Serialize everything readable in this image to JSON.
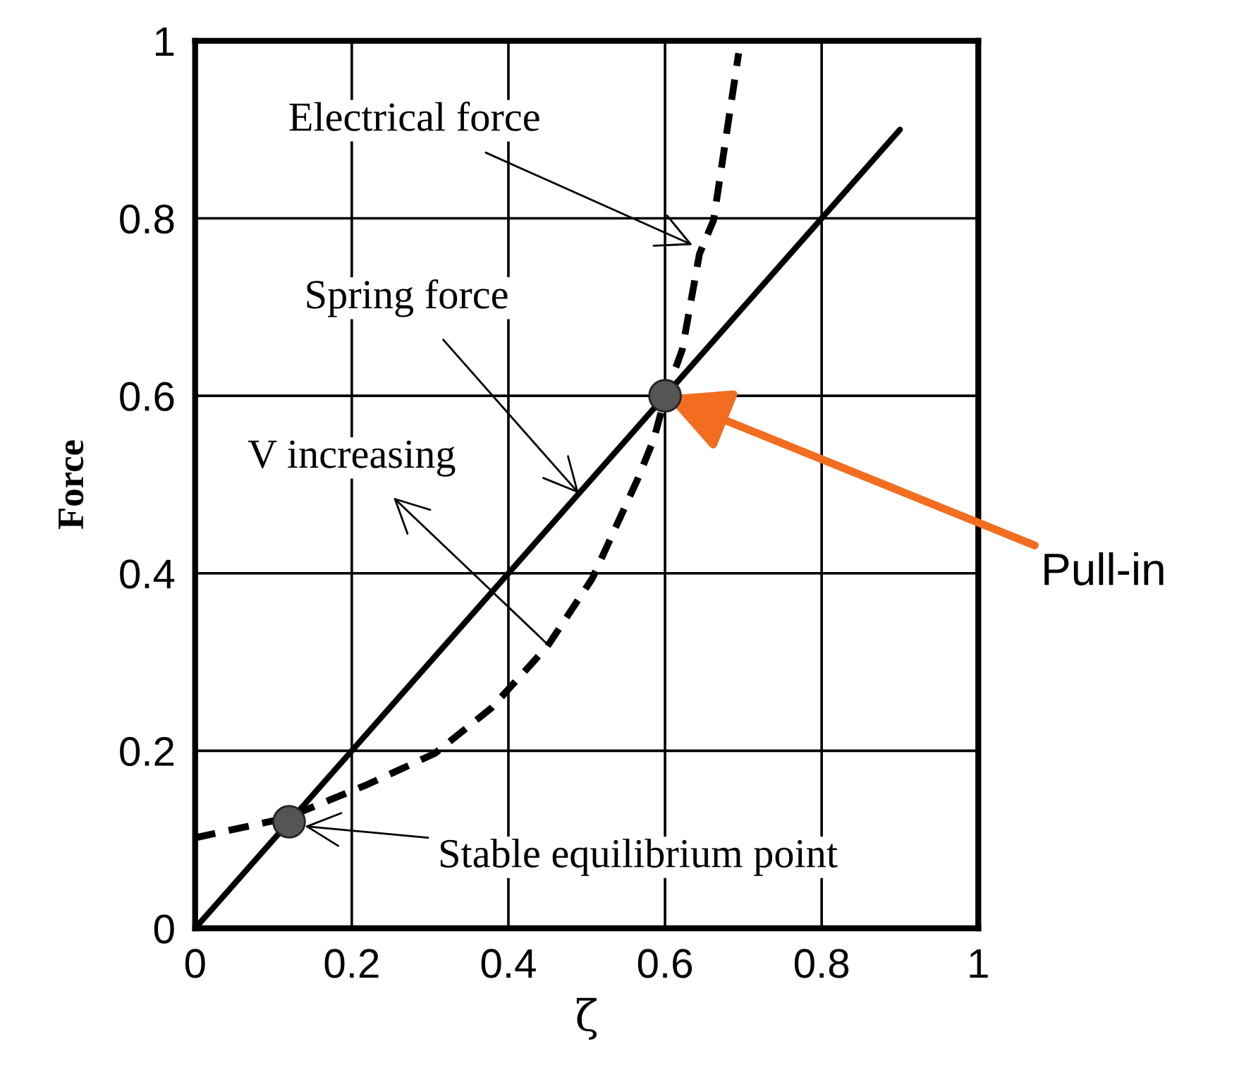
{
  "chart_data": {
    "type": "line",
    "xlabel": "ζ",
    "ylabel": "Force",
    "series": [
      {
        "color": "#000000",
        "line_style": "solid",
        "x": [
          0,
          0.9
        ],
        "values": [
          0,
          0.9
        ]
      },
      {
        "color": "#000000",
        "line_style": "dashed",
        "x": [
          0,
          0.115,
          0.22,
          0.306,
          0.378,
          0.45,
          0.507,
          0.565,
          0.586,
          0.6,
          0.622,
          0.644,
          0.662,
          0.694
        ],
        "values": [
          0.102,
          0.124,
          0.162,
          0.197,
          0.248,
          0.318,
          0.394,
          0.506,
          0.552,
          0.598,
          0.652,
          0.76,
          0.798,
          0.986
        ]
      },
      {
        "type": "scatter",
        "color": "#555555",
        "marker": "circle",
        "x": [
          0.12,
          0.6
        ],
        "values": [
          0.12,
          0.6
        ]
      }
    ],
    "annotations": [
      {
        "text": "Electrical force",
        "x": 0.635,
        "y": 0.77
      },
      {
        "text": "Spring force",
        "x": 0.49,
        "y": 0.49
      },
      {
        "text": "V increasing",
        "x": 0.45,
        "y": 0.32
      },
      "Stable equilibrium point",
      {
        "text": "Pull-in",
        "x": 0.6,
        "y": 0.6
      }
    ],
    "xlim": [
      0,
      1
    ],
    "ylim": [
      0,
      1
    ],
    "xticks": [
      0,
      0.2,
      0.4,
      0.6,
      0.8,
      1
    ],
    "yticks": [
      0,
      0.2,
      0.4,
      0.6,
      0.8,
      1
    ],
    "grid": true
  }
}
